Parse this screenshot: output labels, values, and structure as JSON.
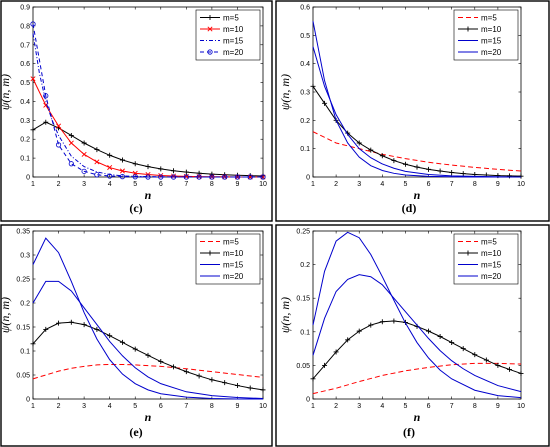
{
  "chart_data": [
    {
      "panel": "(c)",
      "type": "line",
      "xlabel": "n",
      "ylabel": "ψ(n, m)",
      "xlim": [
        1,
        10
      ],
      "ylim": [
        0,
        0.9
      ],
      "xticks": [
        "1",
        "2",
        "3",
        "4",
        "5",
        "6",
        "7",
        "8",
        "9",
        "10"
      ],
      "yticks": [
        "0",
        "0.1",
        "0.2",
        "0.3",
        "0.4",
        "0.5",
        "0.6",
        "0.7",
        "0.8",
        "0.9"
      ],
      "legend_position": "top-right",
      "series": [
        {
          "name": "m=5",
          "color": "#000000",
          "dash": "",
          "marker": "plus",
          "x": [
            1,
            1.5,
            2,
            2.5,
            3,
            3.5,
            4,
            4.5,
            5,
            5.5,
            6,
            6.5,
            7,
            7.5,
            8,
            8.5,
            9,
            9.5,
            10
          ],
          "y": [
            0.25,
            0.29,
            0.26,
            0.22,
            0.18,
            0.145,
            0.115,
            0.09,
            0.07,
            0.055,
            0.043,
            0.033,
            0.026,
            0.02,
            0.015,
            0.012,
            0.009,
            0.007,
            0.005
          ]
        },
        {
          "name": "m=10",
          "color": "#ff0000",
          "dash": "",
          "marker": "x",
          "x": [
            1,
            1.5,
            2,
            2.5,
            3,
            3.5,
            4,
            4.5,
            5,
            5.5,
            6,
            6.5,
            7,
            7.5,
            8,
            8.5,
            9,
            9.5,
            10
          ],
          "y": [
            0.52,
            0.38,
            0.27,
            0.18,
            0.12,
            0.08,
            0.05,
            0.032,
            0.02,
            0.013,
            0.008,
            0.005,
            0.003,
            0.002,
            0.001,
            0.001,
            0.0,
            0.0,
            0.0
          ]
        },
        {
          "name": "m=15",
          "color": "#0000cc",
          "dash": "4,2,1,2",
          "marker": "",
          "x": [
            1,
            1.25,
            1.5,
            1.75,
            2,
            2.5,
            3,
            3.5,
            4,
            4.5,
            5,
            6,
            7,
            8,
            9,
            10
          ],
          "y": [
            0.76,
            0.55,
            0.4,
            0.3,
            0.22,
            0.11,
            0.055,
            0.027,
            0.013,
            0.006,
            0.003,
            0.001,
            0.0,
            0.0,
            0.0,
            0.0
          ]
        },
        {
          "name": "m=20",
          "color": "#0000cc",
          "dash": "4,3",
          "marker": "circle",
          "x": [
            1,
            1.5,
            2,
            2.5,
            3,
            3.5,
            4,
            4.5,
            5,
            5.5,
            6,
            6.5,
            7,
            7.5,
            8,
            8.5,
            9,
            9.5,
            10
          ],
          "y": [
            0.81,
            0.43,
            0.17,
            0.07,
            0.03,
            0.012,
            0.005,
            0.002,
            0.001,
            0.0,
            0.0,
            0.0,
            0.0,
            0.0,
            0.0,
            0.0,
            0.0,
            0.0,
            0.0
          ]
        }
      ]
    },
    {
      "panel": "(d)",
      "type": "line",
      "xlabel": "n",
      "ylabel": "ψ(n, m)",
      "xlim": [
        1,
        10
      ],
      "ylim": [
        0,
        0.6
      ],
      "xticks": [
        "1",
        "2",
        "3",
        "4",
        "5",
        "6",
        "7",
        "8",
        "9",
        "10"
      ],
      "yticks": [
        "0",
        "0.1",
        "0.2",
        "0.3",
        "0.4",
        "0.5",
        "0.6"
      ],
      "legend_position": "top-right",
      "series": [
        {
          "name": "m=5",
          "color": "#ff0000",
          "dash": "5,3",
          "marker": "",
          "x": [
            1,
            1.5,
            2,
            3,
            4,
            5,
            6,
            7,
            8,
            9,
            10
          ],
          "y": [
            0.16,
            0.14,
            0.12,
            0.1,
            0.08,
            0.065,
            0.052,
            0.042,
            0.034,
            0.027,
            0.021
          ]
        },
        {
          "name": "m=10",
          "color": "#000000",
          "dash": "",
          "marker": "plus",
          "x": [
            1,
            1.5,
            2,
            2.5,
            3,
            3.5,
            4,
            4.5,
            5,
            5.5,
            6,
            6.5,
            7,
            7.5,
            8,
            8.5,
            9,
            9.5,
            10
          ],
          "y": [
            0.32,
            0.26,
            0.2,
            0.155,
            0.12,
            0.095,
            0.075,
            0.058,
            0.045,
            0.035,
            0.027,
            0.021,
            0.016,
            0.012,
            0.009,
            0.007,
            0.005,
            0.004,
            0.003
          ]
        },
        {
          "name": "m=15",
          "color": "#0000cc",
          "dash": "",
          "marker": "",
          "x": [
            1,
            1.5,
            2,
            2.5,
            3,
            3.5,
            4,
            4.5,
            5,
            6,
            7,
            8,
            9,
            10
          ],
          "y": [
            0.46,
            0.32,
            0.22,
            0.15,
            0.1,
            0.068,
            0.046,
            0.031,
            0.02,
            0.009,
            0.004,
            0.002,
            0.001,
            0.0
          ]
        },
        {
          "name": "m=20",
          "color": "#0000cc",
          "dash": "",
          "marker": "",
          "x": [
            1,
            1.5,
            2,
            2.5,
            3,
            3.5,
            4,
            4.5,
            5,
            6,
            7,
            8,
            9,
            10
          ],
          "y": [
            0.55,
            0.34,
            0.2,
            0.12,
            0.07,
            0.04,
            0.023,
            0.013,
            0.007,
            0.002,
            0.001,
            0.0,
            0.0,
            0.0
          ]
        }
      ]
    },
    {
      "panel": "(e)",
      "type": "line",
      "xlabel": "n",
      "ylabel": "ψ(n, m)",
      "xlim": [
        1,
        10
      ],
      "ylim": [
        0,
        0.35
      ],
      "xticks": [
        "1",
        "2",
        "3",
        "4",
        "5",
        "6",
        "7",
        "8",
        "9",
        "10"
      ],
      "yticks": [
        "0",
        "0.05",
        "0.1",
        "0.15",
        "0.2",
        "0.25",
        "0.3",
        "0.35"
      ],
      "legend_position": "top-right",
      "series": [
        {
          "name": "m=5",
          "color": "#ff0000",
          "dash": "5,3",
          "marker": "",
          "x": [
            1,
            1.5,
            2,
            2.5,
            3,
            3.5,
            4,
            4.5,
            5,
            6,
            7,
            8,
            9,
            10
          ],
          "y": [
            0.042,
            0.05,
            0.058,
            0.064,
            0.068,
            0.071,
            0.072,
            0.072,
            0.071,
            0.068,
            0.063,
            0.057,
            0.051,
            0.045
          ]
        },
        {
          "name": "m=10",
          "color": "#000000",
          "dash": "",
          "marker": "plus",
          "x": [
            1,
            1.5,
            2,
            2.5,
            3,
            3.5,
            4,
            4.5,
            5,
            5.5,
            6,
            6.5,
            7,
            7.5,
            8,
            8.5,
            9,
            9.5,
            10
          ],
          "y": [
            0.115,
            0.145,
            0.158,
            0.16,
            0.155,
            0.145,
            0.132,
            0.118,
            0.104,
            0.091,
            0.078,
            0.067,
            0.057,
            0.048,
            0.04,
            0.034,
            0.028,
            0.023,
            0.019
          ]
        },
        {
          "name": "m=15",
          "color": "#0000cc",
          "dash": "",
          "marker": "",
          "x": [
            1,
            1.5,
            2,
            2.5,
            3,
            3.5,
            4,
            4.5,
            5,
            5.5,
            6,
            7,
            8,
            9,
            10
          ],
          "y": [
            0.2,
            0.245,
            0.245,
            0.225,
            0.19,
            0.155,
            0.12,
            0.09,
            0.065,
            0.046,
            0.032,
            0.015,
            0.007,
            0.003,
            0.001
          ]
        },
        {
          "name": "m=20",
          "color": "#0000cc",
          "dash": "",
          "marker": "",
          "x": [
            1,
            1.5,
            2,
            2.5,
            3,
            3.5,
            4,
            4.5,
            5,
            5.5,
            6,
            7,
            8,
            9,
            10
          ],
          "y": [
            0.28,
            0.335,
            0.305,
            0.245,
            0.18,
            0.125,
            0.082,
            0.052,
            0.032,
            0.019,
            0.011,
            0.004,
            0.001,
            0.0,
            0.0
          ]
        }
      ]
    },
    {
      "panel": "(f)",
      "type": "line",
      "xlabel": "n",
      "ylabel": "ψ(n, m)",
      "xlim": [
        1,
        10
      ],
      "ylim": [
        0,
        0.25
      ],
      "xticks": [
        "1",
        "2",
        "3",
        "4",
        "5",
        "6",
        "7",
        "8",
        "9",
        "10"
      ],
      "yticks": [
        "0",
        "0.05",
        "0.1",
        "0.15",
        "0.2",
        "0.25"
      ],
      "legend_position": "top-right",
      "series": [
        {
          "name": "m=5",
          "color": "#ff0000",
          "dash": "5,3",
          "marker": "",
          "x": [
            1,
            2,
            3,
            4,
            5,
            6,
            7,
            8,
            9,
            10
          ],
          "y": [
            0.008,
            0.016,
            0.026,
            0.035,
            0.042,
            0.047,
            0.051,
            0.053,
            0.053,
            0.052
          ]
        },
        {
          "name": "m=10",
          "color": "#000000",
          "dash": "",
          "marker": "plus",
          "x": [
            1,
            1.5,
            2,
            2.5,
            3,
            3.5,
            4,
            4.5,
            5,
            5.5,
            6,
            6.5,
            7,
            7.5,
            8,
            8.5,
            9,
            9.5,
            10
          ],
          "y": [
            0.03,
            0.05,
            0.07,
            0.088,
            0.101,
            0.11,
            0.115,
            0.116,
            0.114,
            0.108,
            0.101,
            0.093,
            0.084,
            0.075,
            0.066,
            0.058,
            0.05,
            0.044,
            0.038
          ]
        },
        {
          "name": "m=15",
          "color": "#0000cc",
          "dash": "",
          "marker": "",
          "x": [
            1,
            1.5,
            2,
            2.5,
            3,
            3.5,
            4,
            4.5,
            5,
            5.5,
            6,
            6.5,
            7,
            7.5,
            8,
            9,
            10
          ],
          "y": [
            0.065,
            0.12,
            0.16,
            0.178,
            0.185,
            0.182,
            0.17,
            0.15,
            0.13,
            0.11,
            0.09,
            0.072,
            0.057,
            0.045,
            0.035,
            0.02,
            0.011
          ]
        },
        {
          "name": "m=20",
          "color": "#0000cc",
          "dash": "",
          "marker": "",
          "x": [
            1,
            1.5,
            2,
            2.5,
            3,
            3.5,
            4,
            4.5,
            5,
            5.5,
            6,
            6.5,
            7,
            8,
            9,
            10
          ],
          "y": [
            0.11,
            0.19,
            0.235,
            0.248,
            0.24,
            0.215,
            0.182,
            0.147,
            0.113,
            0.084,
            0.061,
            0.043,
            0.03,
            0.013,
            0.005,
            0.002
          ]
        }
      ]
    }
  ]
}
